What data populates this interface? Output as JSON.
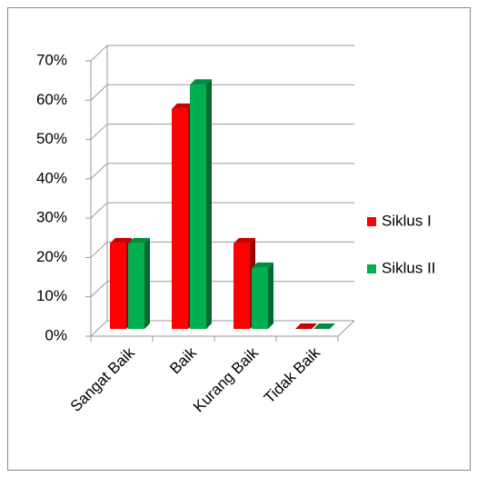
{
  "chart_data": {
    "type": "bar3d",
    "categories": [
      "Sangat Baik",
      "Baik",
      "Kurang Baik",
      "Tidak Baik"
    ],
    "series": [
      {
        "name": "Siklus I",
        "color": "#ff0000",
        "values": [
          21.9,
          56.3,
          21.9,
          0
        ]
      },
      {
        "name": "Siklus II",
        "color": "#00b050",
        "values": [
          21.9,
          62.5,
          15.6,
          0
        ]
      }
    ],
    "ylim": [
      0,
      70
    ],
    "yticks": [
      {
        "value": 0,
        "label": "0%"
      },
      {
        "value": 10,
        "label": "10%"
      },
      {
        "value": 20,
        "label": "20%"
      },
      {
        "value": 30,
        "label": "30%"
      },
      {
        "value": 40,
        "label": "40%"
      },
      {
        "value": 50,
        "label": "50%"
      },
      {
        "value": 60,
        "label": "60%"
      },
      {
        "value": 70,
        "label": "70%"
      }
    ],
    "grid": true,
    "legend": "right"
  }
}
